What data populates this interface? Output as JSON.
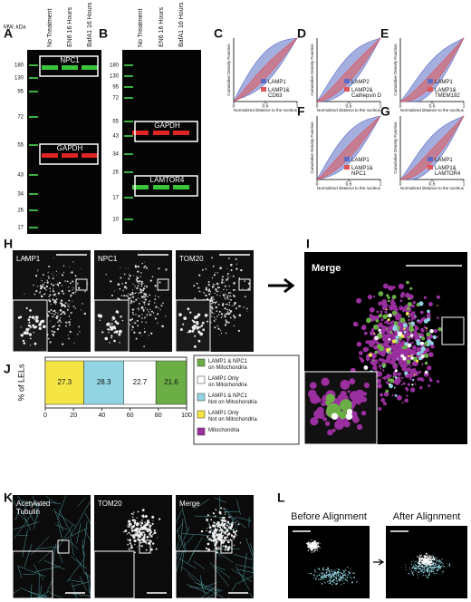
{
  "A": {
    "label": "A",
    "mw_title": "MW, kDa",
    "lanes": [
      "No Treatment",
      "EN6 16 Hours",
      "BafA1 16 Hours"
    ],
    "markers": [
      180,
      130,
      95,
      72,
      55,
      43,
      34,
      26,
      17
    ],
    "bands": [
      "NPC1",
      "GAPDH"
    ]
  },
  "B": {
    "label": "B",
    "lanes": [
      "No Treatment",
      "EN6 16 Hours",
      "BafA1 16 Hours"
    ],
    "markers": [
      180,
      130,
      95,
      72,
      55,
      43,
      34,
      26,
      17,
      10
    ],
    "bands": [
      "GAPDH",
      "LAMTOR4"
    ]
  },
  "cdf": {
    "ylabel": "Cumulative Density Function",
    "xlabel": "Normalized distance to the nucleus",
    "xticks": [
      0,
      0.5,
      1
    ],
    "colors": [
      "#5a6cc4",
      "#e05555"
    ],
    "panels": [
      {
        "label": "C",
        "legend": [
          [
            "LAMP1"
          ],
          [
            "LAMP1&",
            "CD63"
          ]
        ]
      },
      {
        "label": "D",
        "legend": [
          [
            "LAMP2"
          ],
          [
            "LAMP2&",
            "Cathepsin D"
          ]
        ]
      },
      {
        "label": "E",
        "legend": [
          [
            "LAMP1"
          ],
          [
            "LAMP1&",
            "TMEM192"
          ]
        ]
      },
      {
        "label": "F",
        "legend": [
          [
            "LAMP1"
          ],
          [
            "LAMP1&",
            "NPC1"
          ]
        ]
      },
      {
        "label": "G",
        "legend": [
          [
            "LAMP1"
          ],
          [
            "LAMP1&",
            "LAMTOR4"
          ]
        ]
      }
    ]
  },
  "H": {
    "label": "H",
    "images": [
      "LAMP1",
      "NPC1",
      "TOM20"
    ]
  },
  "I": {
    "label": "I",
    "title": "Merge"
  },
  "J": {
    "label": "J",
    "ylabel": "% of LELs",
    "values": [
      27.3,
      28.3,
      22.7,
      21.6
    ],
    "colors": [
      "#f4e545",
      "#92d4e2",
      "#ffffff",
      "#6aae45"
    ],
    "xlim": [
      0,
      100
    ],
    "xticks": [
      0,
      20,
      40,
      60,
      80,
      100
    ],
    "legend": [
      {
        "lines": [
          "LAMP1 & NPC1",
          "on Mitochondria"
        ],
        "color": "#6aae45"
      },
      {
        "lines": [
          "LAMP1 Only",
          "on Mitochondria"
        ],
        "color": "#ffffff"
      },
      {
        "lines": [
          "LAMP1 & NPC1",
          "Not on Mitochondria"
        ],
        "color": "#92d4e2"
      },
      {
        "lines": [
          "LAMP1 Only",
          "Not on Mitochondria"
        ],
        "color": "#f4e545"
      },
      {
        "lines": [
          "Mitochondria"
        ],
        "color": "#9b2f9f"
      }
    ]
  },
  "K": {
    "label": "K",
    "images": [
      [
        "Acetylated",
        "Tubulin"
      ],
      [
        "TOM20"
      ],
      [
        "Merge"
      ]
    ]
  },
  "L": {
    "label": "L",
    "images": [
      "Before Alignment",
      "After Alignment"
    ]
  }
}
